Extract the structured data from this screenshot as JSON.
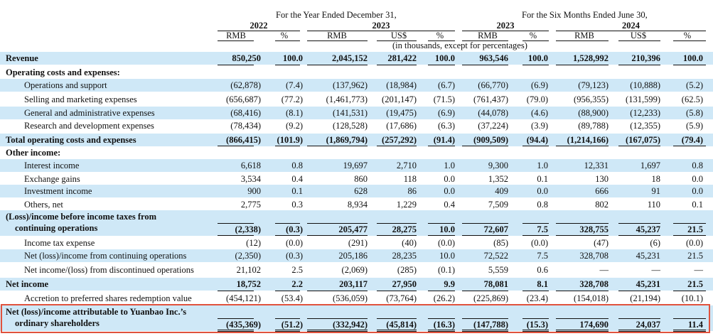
{
  "header": {
    "period_year": "For the Year Ended December 31,",
    "period_six": "For the Six Months Ended June 30,",
    "year_2022": "2022",
    "year_2023": "2023",
    "year_2023b": "2023",
    "year_2024": "2024",
    "cols": [
      "RMB",
      "%",
      "RMB",
      "US$",
      "%",
      "RMB",
      "%",
      "RMB",
      "US$",
      "%"
    ],
    "note": "(in thousands, except for percentages)"
  },
  "rows": [
    {
      "label": "Revenue",
      "values": [
        "850,250",
        "100.0",
        "2,045,152",
        "281,422",
        "100.0",
        "963,546",
        "100.0",
        "1,528,992",
        "210,396",
        "100.0"
      ]
    },
    {
      "label": "Operating costs and expenses:",
      "values": []
    },
    {
      "label": "Operations and support",
      "values": [
        "(62,878)",
        "(7.4)",
        "(137,962)",
        "(18,984)",
        "(6.7)",
        "(66,770)",
        "(6.9)",
        "(79,123)",
        "(10,888)",
        "(5.2)"
      ]
    },
    {
      "label": "Selling and marketing expenses",
      "values": [
        "(656,687)",
        "(77.2)",
        "(1,461,773)",
        "(201,147)",
        "(71.5)",
        "(761,437)",
        "(79.0)",
        "(956,355)",
        "(131,599)",
        "(62.5)"
      ]
    },
    {
      "label": "General and administrative expenses",
      "values": [
        "(68,416)",
        "(8.1)",
        "(141,531)",
        "(19,475)",
        "(6.9)",
        "(44,078)",
        "(4.6)",
        "(88,900)",
        "(12,233)",
        "(5.8)"
      ]
    },
    {
      "label": "Research and development expenses",
      "values": [
        "(78,434)",
        "(9.2)",
        "(128,528)",
        "(17,686)",
        "(6.3)",
        "(37,224)",
        "(3.9)",
        "(89,788)",
        "(12,355)",
        "(5.9)"
      ]
    },
    {
      "label": "Total operating costs and expenses",
      "values": [
        "(866,415)",
        "(101.9)",
        "(1,869,794)",
        "(257,292)",
        "(91.4)",
        "(909,509)",
        "(94.4)",
        "(1,214,166)",
        "(167,075)",
        "(79.4)"
      ]
    },
    {
      "label": "Other income:",
      "values": []
    },
    {
      "label": "Interest income",
      "values": [
        "6,618",
        "0.8",
        "19,697",
        "2,710",
        "1.0",
        "9,300",
        "1.0",
        "12,331",
        "1,697",
        "0.8"
      ]
    },
    {
      "label": "Exchange gains",
      "values": [
        "3,534",
        "0.4",
        "860",
        "118",
        "0.0",
        "1,352",
        "0.1",
        "130",
        "18",
        "0.0"
      ]
    },
    {
      "label": "Investment income",
      "values": [
        "900",
        "0.1",
        "628",
        "86",
        "0.0",
        "409",
        "0.0",
        "666",
        "91",
        "0.0"
      ]
    },
    {
      "label": "Others, net",
      "values": [
        "2,775",
        "0.3",
        "8,934",
        "1,229",
        "0.4",
        "7,509",
        "0.8",
        "802",
        "110",
        "0.1"
      ]
    },
    {
      "label": "(Loss)/income before income taxes from",
      "label2": "continuing operations",
      "values": [
        "(2,338)",
        "(0.3)",
        "205,477",
        "28,275",
        "10.0",
        "72,607",
        "7.5",
        "328,755",
        "45,237",
        "21.5"
      ]
    },
    {
      "label": "Income tax expense",
      "values": [
        "(12)",
        "(0.0)",
        "(291)",
        "(40)",
        "(0.0)",
        "(85)",
        "(0.0)",
        "(47)",
        "(6)",
        "(0.0)"
      ]
    },
    {
      "label": "Net (loss)/income from continuing operations",
      "values": [
        "(2,350)",
        "(0.3)",
        "205,186",
        "28,235",
        "10.0",
        "72,522",
        "7.5",
        "328,708",
        "45,231",
        "21.5"
      ]
    },
    {
      "label": "Net income/(loss) from discontinued operations",
      "values": [
        "21,102",
        "2.5",
        "(2,069)",
        "(285)",
        "(0.1)",
        "5,559",
        "0.6",
        "—",
        "—",
        "—"
      ]
    },
    {
      "label": "Net income",
      "values": [
        "18,752",
        "2.2",
        "203,117",
        "27,950",
        "9.9",
        "78,081",
        "8.1",
        "328,708",
        "45,231",
        "21.5"
      ]
    },
    {
      "label": "Accretion to preferred shares redemption value",
      "values": [
        "(454,121)",
        "(53.4)",
        "(536,059)",
        "(73,764)",
        "(26.2)",
        "(225,869)",
        "(23.4)",
        "(154,018)",
        "(21,194)",
        "(10.1)"
      ]
    },
    {
      "label": "Net (loss)/income attributable to Yuanbao Inc.’s",
      "label2": "ordinary shareholders",
      "values": [
        "(435,369)",
        "(51.2)",
        "(332,942)",
        "(45,814)",
        "(16.3)",
        "(147,788)",
        "(15.3)",
        "174,690",
        "24,037",
        "11.4"
      ]
    }
  ]
}
